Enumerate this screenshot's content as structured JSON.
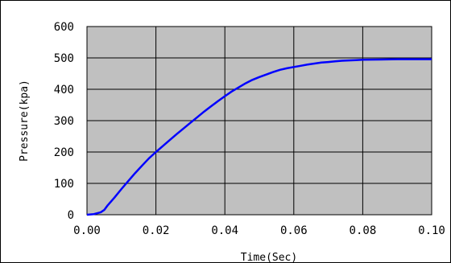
{
  "chart_data": {
    "type": "line",
    "title": "",
    "xlabel": "Time(Sec)",
    "ylabel": "Pressure(kpa)",
    "xlim": [
      0,
      0.1
    ],
    "ylim": [
      0,
      600
    ],
    "x_ticks": [
      "0.00",
      "0.02",
      "0.04",
      "0.06",
      "0.08",
      "0.10"
    ],
    "y_ticks": [
      "0",
      "100",
      "200",
      "300",
      "400",
      "500",
      "600"
    ],
    "grid": true,
    "plot_background": "#c0c0c0",
    "series": [
      {
        "color": "#0000ff",
        "x": [
          0.0,
          0.002,
          0.004,
          0.005,
          0.006,
          0.008,
          0.01,
          0.012,
          0.014,
          0.016,
          0.018,
          0.02,
          0.022,
          0.024,
          0.026,
          0.028,
          0.03,
          0.032,
          0.034,
          0.036,
          0.038,
          0.04,
          0.042,
          0.044,
          0.046,
          0.048,
          0.05,
          0.052,
          0.054,
          0.056,
          0.058,
          0.06,
          0.062,
          0.064,
          0.066,
          0.068,
          0.07,
          0.072,
          0.074,
          0.076,
          0.078,
          0.08,
          0.085,
          0.09,
          0.095,
          0.1
        ],
        "y": [
          0,
          2,
          8,
          15,
          30,
          55,
          82,
          108,
          133,
          157,
          180,
          200,
          219,
          238,
          257,
          275,
          293,
          311,
          329,
          346,
          362,
          378,
          393,
          406,
          419,
          430,
          439,
          447,
          455,
          462,
          467,
          471,
          475,
          479,
          482,
          485,
          487,
          489,
          491,
          492,
          493,
          494,
          495,
          496,
          496,
          496
        ]
      }
    ]
  }
}
